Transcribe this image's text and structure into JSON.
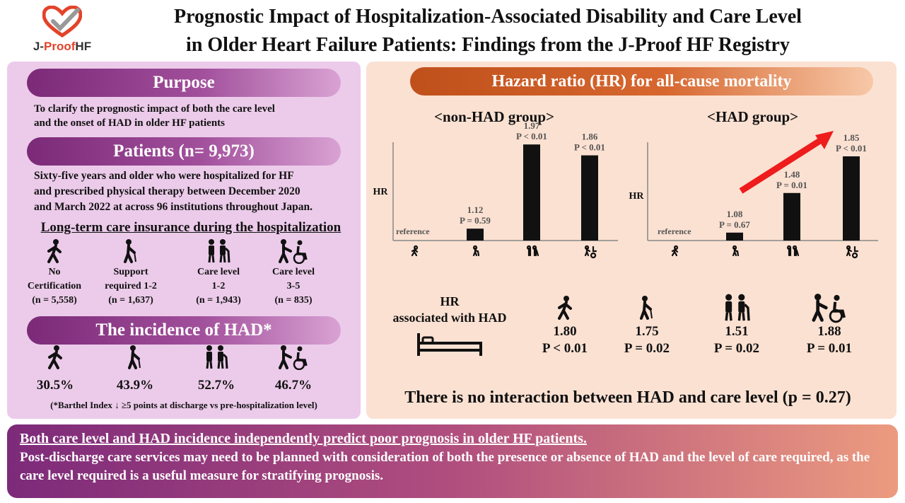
{
  "logo": {
    "prefix": "J-",
    "middle": "Proof",
    "suffix": "HF"
  },
  "title": {
    "line1": "Prognostic Impact of Hospitalization-Associated Disability and Care Level",
    "line2": "in Older Heart Failure Patients: Findings from the J-Proof HF Registry"
  },
  "purpose": {
    "heading": "Purpose",
    "line1": "To clarify the prognostic impact of both the care level",
    "line2": "and the onset of HAD in older HF patients"
  },
  "patients": {
    "heading": "Patients (n= 9,973)",
    "line1": "Sixty-five years and older who were hospitalized for HF",
    "line2": "and prescribed physical therapy between December 2020",
    "line3": "and March 2022 at across 96 institutions throughout Japan."
  },
  "long_term": {
    "heading": "Long-term care insurance during the hospitalization",
    "groups": [
      {
        "line1": "No",
        "line2": "Certification",
        "n": "(n = 5,558)",
        "icon": "walker-icon"
      },
      {
        "line1": "Support",
        "line2": "required 1-2",
        "n": "(n = 1,637)",
        "icon": "cane-icon"
      },
      {
        "line1": "Care level",
        "line2": "1-2",
        "n": "(n = 1,943)",
        "icon": "assisted-pair-icon"
      },
      {
        "line1": "Care level",
        "line2": "3-5",
        "n": "(n = 835)",
        "icon": "wheelchair-icon"
      }
    ]
  },
  "incidence": {
    "heading": "The incidence of HAD*",
    "values": [
      "30.5%",
      "43.9%",
      "52.7%",
      "46.7%"
    ],
    "footnote": "(*Barthel Index ↓ ≥5 points at discharge vs pre-hospitalization level)"
  },
  "hazard": {
    "heading": "Hazard ratio (HR) for all-cause mortality",
    "hr_axis_label": "HR",
    "reference_label": "reference"
  },
  "chart_data": [
    {
      "type": "bar",
      "title": "<non-HAD group>",
      "categories": [
        "No Certification",
        "Support required 1-2",
        "Care level 1-2",
        "Care level 3-5"
      ],
      "values": [
        1.0,
        1.12,
        1.97,
        1.86
      ],
      "labels": [
        "reference",
        "1.12",
        "1.97",
        "1.86"
      ],
      "p_values": [
        "",
        "P = 0.59",
        "P < 0.01",
        "P < 0.01"
      ],
      "ylabel": "HR",
      "ylim": [
        1.0,
        2.1
      ]
    },
    {
      "type": "bar",
      "title": "<HAD group>",
      "categories": [
        "No Certification",
        "Support required 1-2",
        "Care level 1-2",
        "Care level 3-5"
      ],
      "values": [
        1.0,
        1.08,
        1.48,
        1.85
      ],
      "labels": [
        "reference",
        "1.08",
        "1.48",
        "1.85"
      ],
      "p_values": [
        "",
        "P = 0.67",
        "P = 0.01",
        "P < 0.01"
      ],
      "ylabel": "HR",
      "ylim": [
        1.0,
        2.1
      ]
    }
  ],
  "had_assoc": {
    "label_line1": "HR",
    "label_line2": "associated with HAD",
    "items": [
      {
        "hr": "1.80",
        "p": "P < 0.01"
      },
      {
        "hr": "1.75",
        "p": "P = 0.02"
      },
      {
        "hr": "1.51",
        "p": "P = 0.02"
      },
      {
        "hr": "1.88",
        "p": "P = 0.01"
      }
    ]
  },
  "interaction": "There is no interaction between HAD and care level (p = 0.27)",
  "conclusion": {
    "line1": "Both care level and HAD incidence independently predict poor prognosis in older HF patients. ",
    "line2": "Post-discharge care services may need to be planned with consideration of both the presence or absence of HAD and the level of care required, as the care level required is a useful measure for stratifying prognosis."
  },
  "colors": {
    "left_panel": "#eccbea",
    "right_panel": "#fbe1d2",
    "pill_purple": "#7b2a78",
    "pill_orange": "#c0501b",
    "arrow_red": "#ee1c1c"
  }
}
